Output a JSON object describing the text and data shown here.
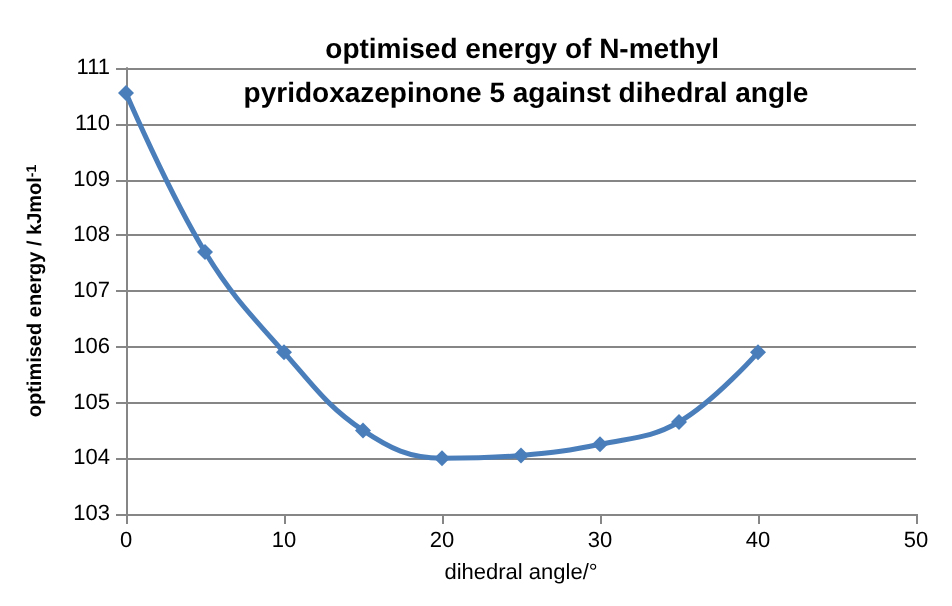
{
  "chart_data": {
    "type": "line",
    "title": "optimised energy of N-methyl pyridoxazepinone 5 against dihedral angle",
    "xlabel": "dihedral angle/°",
    "ylabel": "optimised energy / kJmol$^{-1}$",
    "x": [
      0,
      5,
      10,
      15,
      20,
      25,
      30,
      35,
      40
    ],
    "series": [
      {
        "color": "#4a7ebb",
        "values": [
          110.55,
          107.7,
          105.9,
          104.5,
          104.0,
          104.05,
          104.25,
          104.65,
          105.9
        ]
      }
    ],
    "xlim": [
      0,
      50
    ],
    "xticks": [
      0,
      10,
      20,
      30,
      40,
      50
    ],
    "ylim": [
      103,
      111
    ],
    "yticks": [
      103,
      104,
      105,
      106,
      107,
      108,
      109,
      110,
      111
    ],
    "grid": "y",
    "marker": "diamond",
    "line_style": "solid"
  }
}
